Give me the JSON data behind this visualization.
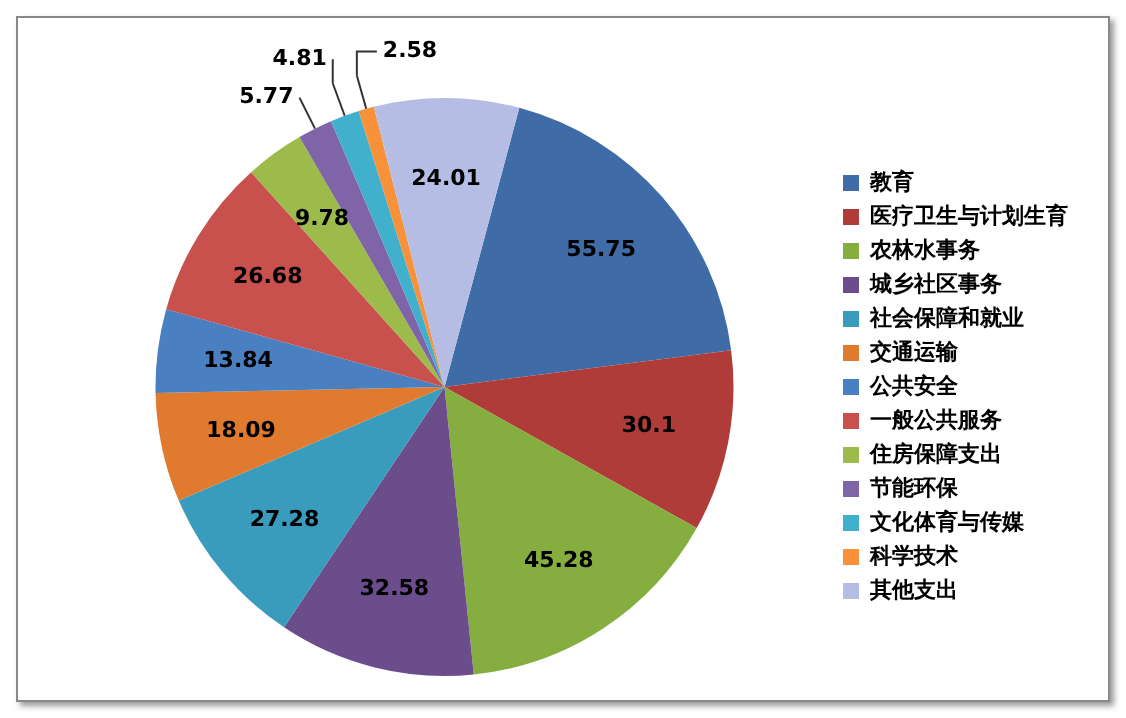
{
  "chart_data": {
    "type": "pie",
    "categories": [
      "教育",
      "医疗卫生与计划生育",
      "农林水事务",
      "城乡社区事务",
      "社会保障和就业",
      "交通运输",
      "公共安全",
      "一般公共服务",
      "住房保障支出",
      "节能环保",
      "文化体育与传媒",
      "科学技术",
      "其他支出"
    ],
    "values": [
      55.75,
      30.1,
      45.28,
      32.58,
      27.28,
      18.09,
      13.84,
      26.68,
      9.78,
      5.77,
      4.81,
      2.58,
      24.01
    ],
    "colors": [
      "#3F6CA6",
      "#B03C3A",
      "#86AD3F",
      "#6C4D8C",
      "#3A9CBD",
      "#E07A2E",
      "#4A7FC1",
      "#C8504D",
      "#9DBB4B",
      "#7F65A8",
      "#41B0CC",
      "#F7923A",
      "#B5BDE5"
    ],
    "data_labels": true,
    "legend": "right"
  }
}
